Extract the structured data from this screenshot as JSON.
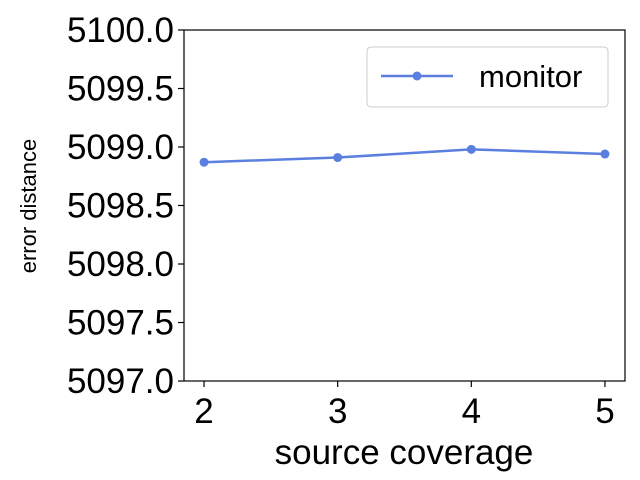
{
  "chart_data": {
    "type": "line",
    "title": "",
    "xlabel": "source coverage",
    "ylabel": "error distance",
    "x": [
      2,
      3,
      4,
      5
    ],
    "x_ticks": [
      "2",
      "3",
      "4",
      "5"
    ],
    "xlim": [
      1.85,
      5.15
    ],
    "ylim": [
      5097.0,
      5100.0
    ],
    "y_ticks": [
      "5097.0",
      "5097.5",
      "5098.0",
      "5098.5",
      "5099.0",
      "5099.5",
      "5100.0"
    ],
    "grid": false,
    "legend_position": "top-right",
    "series": [
      {
        "name": "monitor",
        "color": "#5b7fe0",
        "marker": "circle",
        "values": [
          5098.87,
          5098.91,
          5098.98,
          5098.94
        ]
      }
    ]
  }
}
